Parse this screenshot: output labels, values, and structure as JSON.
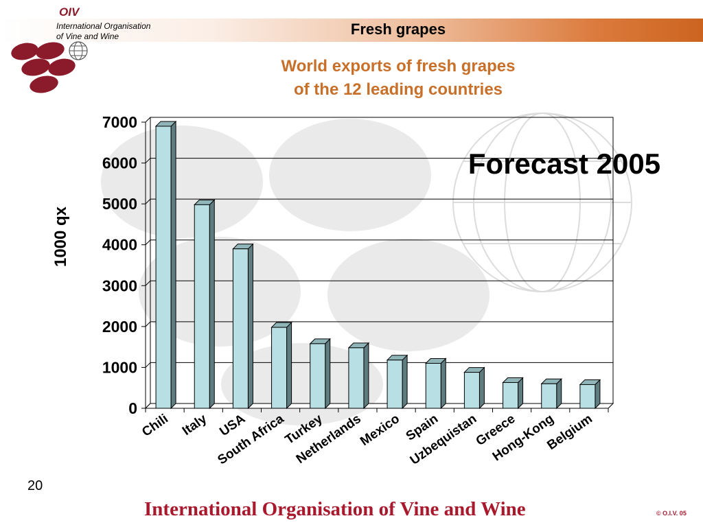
{
  "header": {
    "logo_text": "OIV",
    "org_line1": "International Organisation",
    "org_line2": "of  Vine  and  Wine",
    "title": "Fresh grapes"
  },
  "chart_title": {
    "line1": "World exports of fresh grapes",
    "line2": "of the 12 leading countries"
  },
  "annotation": "Forecast 2005",
  "chart_data": {
    "type": "bar",
    "title": "World exports of fresh grapes of the 12 leading countries",
    "ylabel": "1000 qx",
    "xlabel": "",
    "ylim": [
      0,
      7000
    ],
    "yticks": [
      0,
      1000,
      2000,
      3000,
      4000,
      5000,
      6000,
      7000
    ],
    "grid": true,
    "categories": [
      "Chili",
      "Italy",
      "USA",
      "South Africa",
      "Turkey",
      "Netherlands",
      "Mexico",
      "Spain",
      "Uzbequistan",
      "Greece",
      "Hong-Kong",
      "Belgium"
    ],
    "values": [
      6900,
      4980,
      3900,
      1980,
      1580,
      1480,
      1180,
      1100,
      880,
      630,
      600,
      580
    ],
    "bar_color": "#b8e0e4"
  },
  "footer": {
    "page_number": "20",
    "organisation": "International Organisation of Vine and Wine",
    "copyright": "© O.I.V. 05"
  },
  "colors": {
    "accent": "#c8702a",
    "brand": "#8b1a2b",
    "footer_text": "#a8192d"
  }
}
